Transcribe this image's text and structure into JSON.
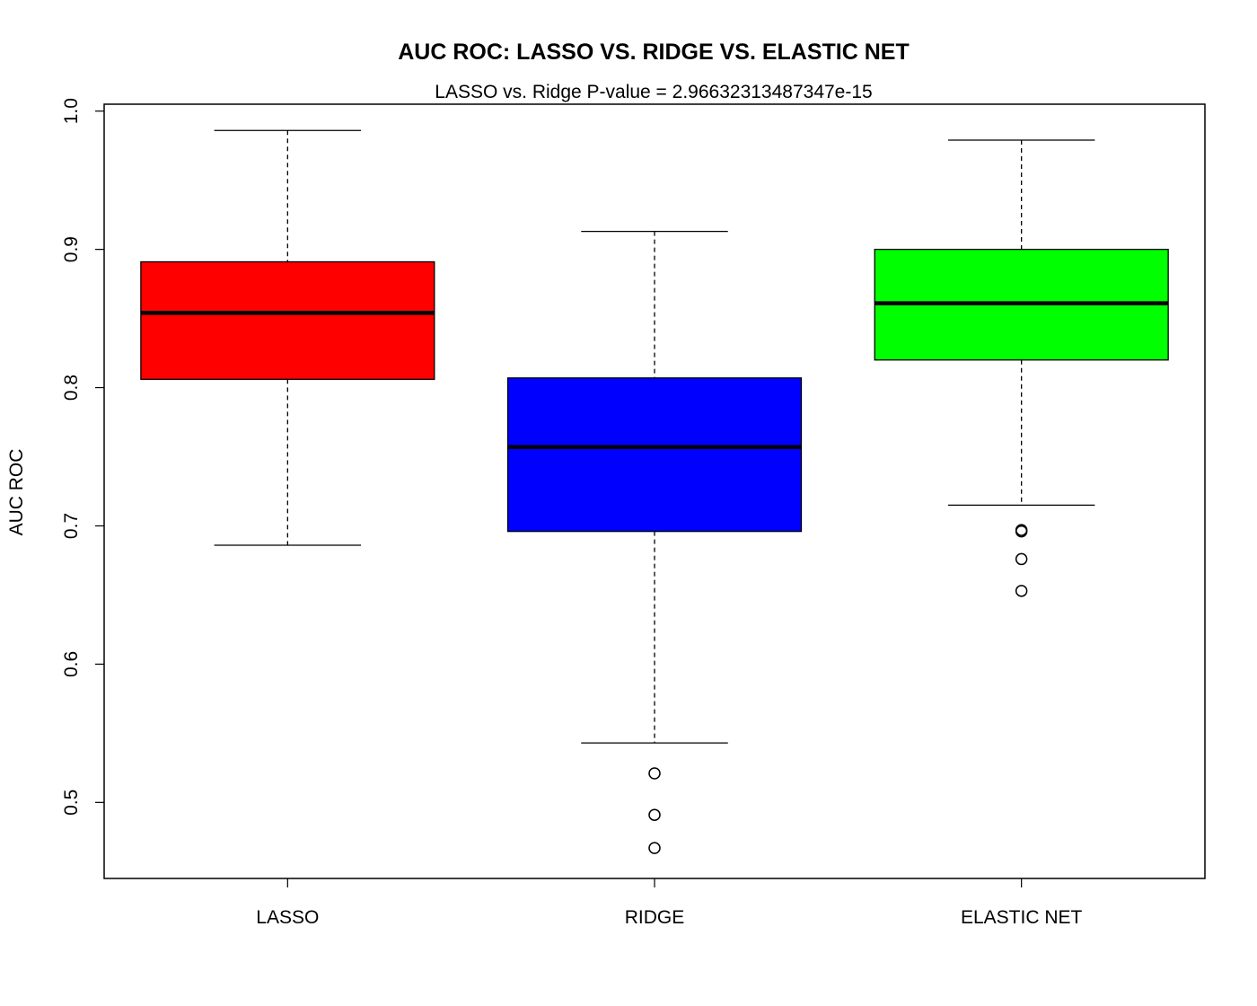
{
  "chart_data": {
    "type": "boxplot",
    "title": "AUC ROC: LASSO VS. RIDGE VS. ELASTIC NET",
    "subtitle": "LASSO vs. Ridge P-value = 2.96632313487347e-15",
    "xlabel": "",
    "ylabel": "AUC ROC",
    "ylim": [
      0.445,
      1.005
    ],
    "yticks": [
      0.5,
      0.6,
      0.7,
      0.8,
      0.9,
      1.0
    ],
    "ytick_labels": [
      "0.5",
      "0.6",
      "0.7",
      "0.8",
      "0.9",
      "1.0"
    ],
    "grid": false,
    "legend": "none",
    "categories": [
      "LASSO",
      "RIDGE",
      "ELASTIC NET"
    ],
    "boxes": [
      {
        "category": "LASSO",
        "color": "#ff0000",
        "whisker_low": 0.686,
        "q1": 0.806,
        "median": 0.854,
        "q3": 0.891,
        "whisker_high": 0.986,
        "outliers": []
      },
      {
        "category": "RIDGE",
        "color": "#0000ff",
        "whisker_low": 0.543,
        "q1": 0.696,
        "median": 0.757,
        "q3": 0.807,
        "whisker_high": 0.913,
        "outliers": [
          0.521,
          0.491,
          0.467
        ]
      },
      {
        "category": "ELASTIC NET",
        "color": "#00ff00",
        "whisker_low": 0.715,
        "q1": 0.82,
        "median": 0.861,
        "q3": 0.9,
        "whisker_high": 0.979,
        "outliers": [
          0.697,
          0.696,
          0.676,
          0.653
        ]
      }
    ]
  }
}
